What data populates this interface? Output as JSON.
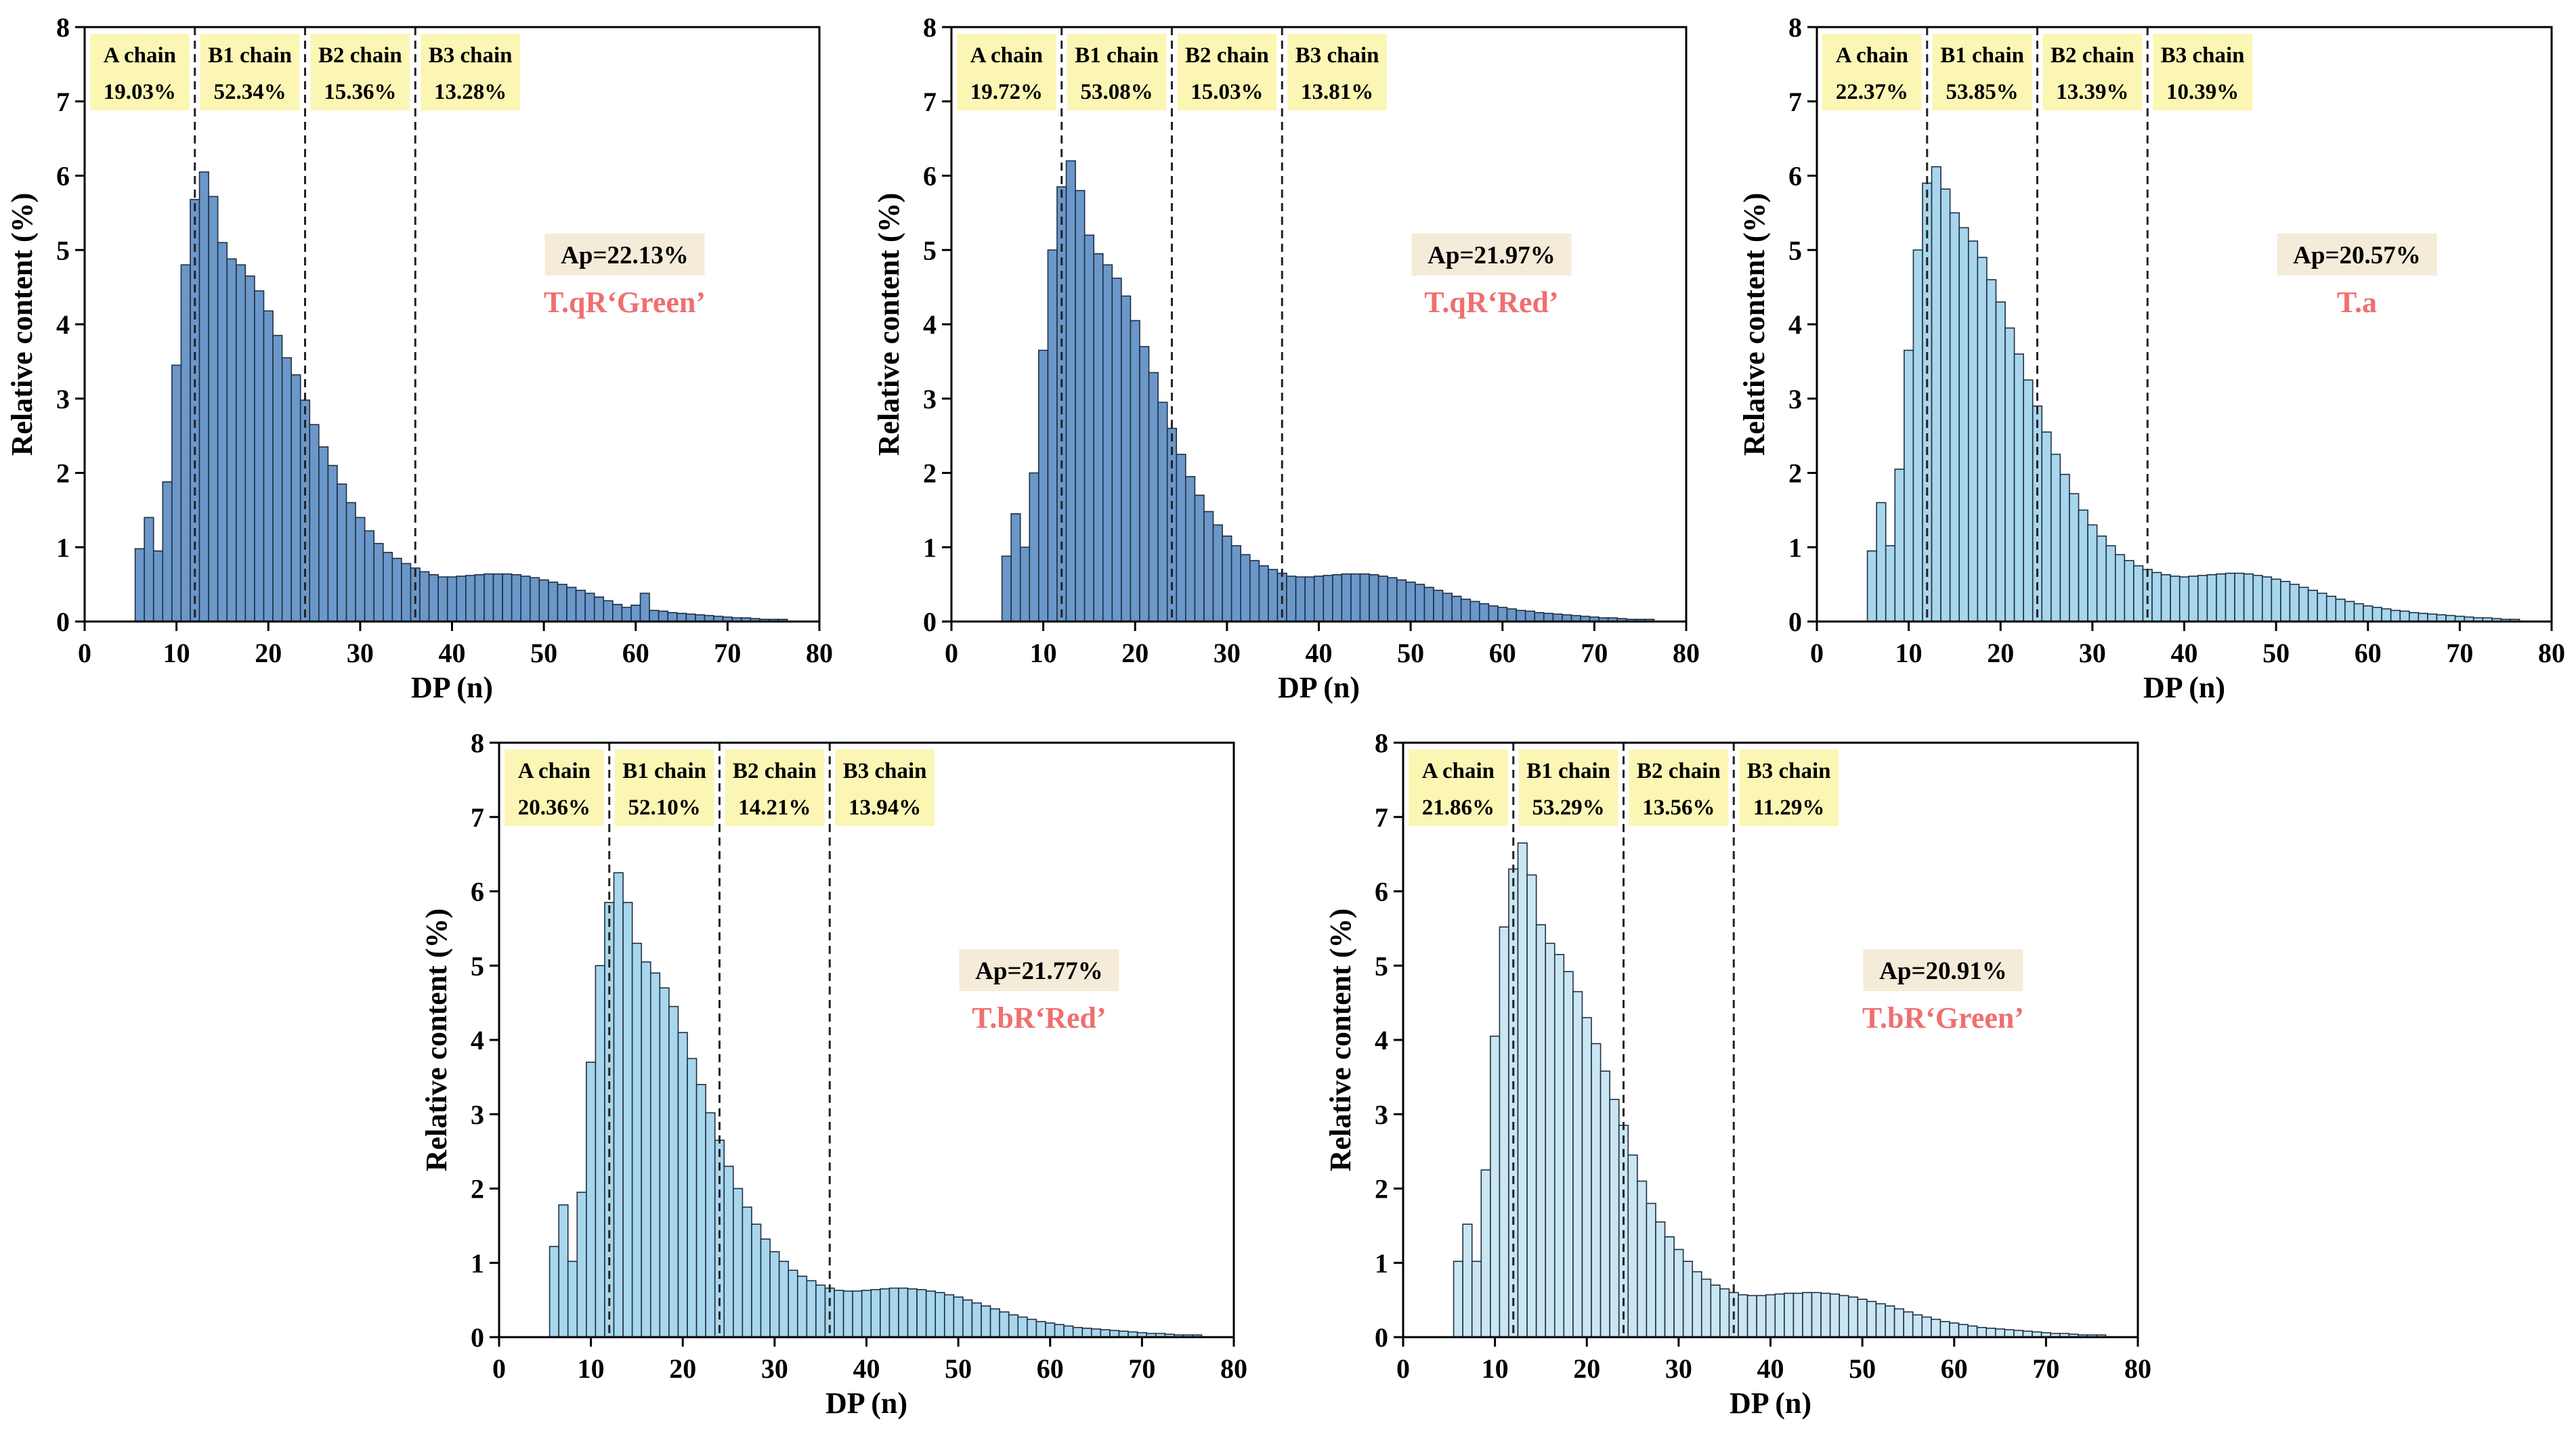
{
  "chart_data": [
    {
      "type": "bar",
      "title": "",
      "xlabel": "DP (n)",
      "ylabel": "Relative content (%)",
      "xlim": [
        0,
        80
      ],
      "ylim": [
        0,
        8
      ],
      "xticks": [
        0,
        10,
        20,
        30,
        40,
        50,
        60,
        70,
        80
      ],
      "yticks": [
        0,
        1,
        2,
        3,
        4,
        5,
        6,
        7,
        8
      ],
      "bar_color": "#6b97c9",
      "dp": [
        6,
        7,
        8,
        9,
        10,
        11,
        12,
        13,
        14,
        15,
        16,
        17,
        18,
        19,
        20,
        21,
        22,
        23,
        24,
        25,
        26,
        27,
        28,
        29,
        30,
        31,
        32,
        33,
        34,
        35,
        36,
        37,
        38,
        39,
        40,
        41,
        42,
        43,
        44,
        45,
        46,
        47,
        48,
        49,
        50,
        51,
        52,
        53,
        54,
        55,
        56,
        57,
        58,
        59,
        60,
        61,
        62,
        63,
        64,
        65,
        66,
        67,
        68,
        69,
        70,
        71,
        72,
        73,
        74,
        75,
        76
      ],
      "values": [
        0.98,
        1.4,
        0.95,
        1.88,
        3.45,
        4.8,
        5.68,
        6.05,
        5.72,
        5.1,
        4.88,
        4.8,
        4.65,
        4.45,
        4.18,
        3.85,
        3.55,
        3.32,
        2.98,
        2.65,
        2.35,
        2.1,
        1.85,
        1.6,
        1.4,
        1.22,
        1.05,
        0.93,
        0.85,
        0.78,
        0.72,
        0.67,
        0.63,
        0.6,
        0.6,
        0.61,
        0.62,
        0.63,
        0.64,
        0.64,
        0.64,
        0.63,
        0.61,
        0.59,
        0.56,
        0.53,
        0.5,
        0.46,
        0.42,
        0.38,
        0.33,
        0.28,
        0.23,
        0.19,
        0.22,
        0.38,
        0.15,
        0.14,
        0.12,
        0.11,
        0.1,
        0.09,
        0.08,
        0.07,
        0.06,
        0.05,
        0.05,
        0.04,
        0.03,
        0.03,
        0.03
      ],
      "chain_boundaries": [
        12,
        24,
        36
      ],
      "chains": [
        {
          "name": "A chain",
          "pct": "19.03%"
        },
        {
          "name": "B1 chain",
          "pct": "52.34%"
        },
        {
          "name": "B2 chain",
          "pct": "15.36%"
        },
        {
          "name": "B3 chain",
          "pct": "13.28%"
        }
      ],
      "ap": "Ap=22.13%",
      "sample": "T.qR‘Green’"
    },
    {
      "type": "bar",
      "title": "",
      "xlabel": "DP (n)",
      "ylabel": "Relative content (%)",
      "xlim": [
        0,
        80
      ],
      "ylim": [
        0,
        8
      ],
      "xticks": [
        0,
        10,
        20,
        30,
        40,
        50,
        60,
        70,
        80
      ],
      "yticks": [
        0,
        1,
        2,
        3,
        4,
        5,
        6,
        7,
        8
      ],
      "bar_color": "#6b97c9",
      "dp": [
        6,
        7,
        8,
        9,
        10,
        11,
        12,
        13,
        14,
        15,
        16,
        17,
        18,
        19,
        20,
        21,
        22,
        23,
        24,
        25,
        26,
        27,
        28,
        29,
        30,
        31,
        32,
        33,
        34,
        35,
        36,
        37,
        38,
        39,
        40,
        41,
        42,
        43,
        44,
        45,
        46,
        47,
        48,
        49,
        50,
        51,
        52,
        53,
        54,
        55,
        56,
        57,
        58,
        59,
        60,
        61,
        62,
        63,
        64,
        65,
        66,
        67,
        68,
        69,
        70,
        71,
        72,
        73,
        74,
        75,
        76
      ],
      "values": [
        0.88,
        1.45,
        1.0,
        2.0,
        3.65,
        5.0,
        5.85,
        6.2,
        5.8,
        5.2,
        4.95,
        4.8,
        4.62,
        4.38,
        4.05,
        3.7,
        3.35,
        2.95,
        2.6,
        2.25,
        1.95,
        1.7,
        1.48,
        1.3,
        1.15,
        1.02,
        0.9,
        0.82,
        0.75,
        0.7,
        0.65,
        0.61,
        0.6,
        0.6,
        0.61,
        0.62,
        0.63,
        0.64,
        0.64,
        0.64,
        0.63,
        0.61,
        0.59,
        0.56,
        0.53,
        0.5,
        0.46,
        0.42,
        0.38,
        0.34,
        0.3,
        0.27,
        0.24,
        0.21,
        0.19,
        0.17,
        0.15,
        0.14,
        0.12,
        0.11,
        0.1,
        0.09,
        0.08,
        0.07,
        0.06,
        0.05,
        0.05,
        0.04,
        0.03,
        0.03,
        0.03
      ],
      "chain_boundaries": [
        12,
        24,
        36
      ],
      "chains": [
        {
          "name": "A chain",
          "pct": "19.72%"
        },
        {
          "name": "B1 chain",
          "pct": "53.08%"
        },
        {
          "name": "B2 chain",
          "pct": "15.03%"
        },
        {
          "name": "B3 chain",
          "pct": "13.81%"
        }
      ],
      "ap": "Ap=21.97%",
      "sample": "T.qR‘Red’"
    },
    {
      "type": "bar",
      "title": "",
      "xlabel": "DP (n)",
      "ylabel": "Relative content (%)",
      "xlim": [
        0,
        80
      ],
      "ylim": [
        0,
        8
      ],
      "xticks": [
        0,
        10,
        20,
        30,
        40,
        50,
        60,
        70,
        80
      ],
      "yticks": [
        0,
        1,
        2,
        3,
        4,
        5,
        6,
        7,
        8
      ],
      "bar_color": "#a8d6ec",
      "dp": [
        6,
        7,
        8,
        9,
        10,
        11,
        12,
        13,
        14,
        15,
        16,
        17,
        18,
        19,
        20,
        21,
        22,
        23,
        24,
        25,
        26,
        27,
        28,
        29,
        30,
        31,
        32,
        33,
        34,
        35,
        36,
        37,
        38,
        39,
        40,
        41,
        42,
        43,
        44,
        45,
        46,
        47,
        48,
        49,
        50,
        51,
        52,
        53,
        54,
        55,
        56,
        57,
        58,
        59,
        60,
        61,
        62,
        63,
        64,
        65,
        66,
        67,
        68,
        69,
        70,
        71,
        72,
        73,
        74,
        75,
        76
      ],
      "values": [
        0.95,
        1.6,
        1.02,
        2.05,
        3.65,
        5.0,
        5.9,
        6.12,
        5.82,
        5.5,
        5.3,
        5.12,
        4.9,
        4.6,
        4.3,
        3.95,
        3.6,
        3.25,
        2.9,
        2.55,
        2.25,
        1.98,
        1.72,
        1.5,
        1.3,
        1.15,
        1.02,
        0.9,
        0.82,
        0.75,
        0.7,
        0.66,
        0.63,
        0.61,
        0.6,
        0.61,
        0.62,
        0.63,
        0.64,
        0.65,
        0.65,
        0.64,
        0.62,
        0.6,
        0.57,
        0.54,
        0.5,
        0.46,
        0.42,
        0.38,
        0.34,
        0.3,
        0.27,
        0.24,
        0.21,
        0.19,
        0.17,
        0.15,
        0.14,
        0.12,
        0.11,
        0.1,
        0.09,
        0.08,
        0.07,
        0.06,
        0.05,
        0.05,
        0.04,
        0.03,
        0.03
      ],
      "chain_boundaries": [
        12,
        24,
        36
      ],
      "chains": [
        {
          "name": "A chain",
          "pct": "22.37%"
        },
        {
          "name": "B1 chain",
          "pct": "53.85%"
        },
        {
          "name": "B2 chain",
          "pct": "13.39%"
        },
        {
          "name": "B3 chain",
          "pct": "10.39%"
        }
      ],
      "ap": "Ap=20.57%",
      "sample": "T.a"
    },
    {
      "type": "bar",
      "title": "",
      "xlabel": "DP (n)",
      "ylabel": "Relative content (%)",
      "xlim": [
        0,
        80
      ],
      "ylim": [
        0,
        8
      ],
      "xticks": [
        0,
        10,
        20,
        30,
        40,
        50,
        60,
        70,
        80
      ],
      "yticks": [
        0,
        1,
        2,
        3,
        4,
        5,
        6,
        7,
        8
      ],
      "bar_color": "#a8d6ec",
      "dp": [
        6,
        7,
        8,
        9,
        10,
        11,
        12,
        13,
        14,
        15,
        16,
        17,
        18,
        19,
        20,
        21,
        22,
        23,
        24,
        25,
        26,
        27,
        28,
        29,
        30,
        31,
        32,
        33,
        34,
        35,
        36,
        37,
        38,
        39,
        40,
        41,
        42,
        43,
        44,
        45,
        46,
        47,
        48,
        49,
        50,
        51,
        52,
        53,
        54,
        55,
        56,
        57,
        58,
        59,
        60,
        61,
        62,
        63,
        64,
        65,
        66,
        67,
        68,
        69,
        70,
        71,
        72,
        73,
        74,
        75,
        76
      ],
      "values": [
        1.22,
        1.78,
        1.02,
        1.95,
        3.7,
        5.0,
        5.85,
        6.25,
        5.85,
        5.3,
        5.05,
        4.9,
        4.7,
        4.45,
        4.1,
        3.75,
        3.4,
        3.02,
        2.65,
        2.3,
        2.0,
        1.75,
        1.52,
        1.32,
        1.15,
        1.02,
        0.9,
        0.82,
        0.76,
        0.7,
        0.66,
        0.63,
        0.62,
        0.62,
        0.63,
        0.64,
        0.65,
        0.66,
        0.66,
        0.65,
        0.64,
        0.62,
        0.6,
        0.57,
        0.54,
        0.5,
        0.46,
        0.42,
        0.38,
        0.34,
        0.3,
        0.27,
        0.24,
        0.21,
        0.19,
        0.17,
        0.15,
        0.13,
        0.12,
        0.11,
        0.1,
        0.09,
        0.08,
        0.07,
        0.06,
        0.05,
        0.05,
        0.04,
        0.03,
        0.03,
        0.03
      ],
      "chain_boundaries": [
        12,
        24,
        36
      ],
      "chains": [
        {
          "name": "A chain",
          "pct": "20.36%"
        },
        {
          "name": "B1 chain",
          "pct": "52.10%"
        },
        {
          "name": "B2 chain",
          "pct": "14.21%"
        },
        {
          "name": "B3 chain",
          "pct": "13.94%"
        }
      ],
      "ap": "Ap=21.77%",
      "sample": "T.bR‘Red’"
    },
    {
      "type": "bar",
      "title": "",
      "xlabel": "DP (n)",
      "ylabel": "Relative content (%)",
      "xlim": [
        0,
        80
      ],
      "ylim": [
        0,
        8
      ],
      "xticks": [
        0,
        10,
        20,
        30,
        40,
        50,
        60,
        70,
        80
      ],
      "yticks": [
        0,
        1,
        2,
        3,
        4,
        5,
        6,
        7,
        8
      ],
      "bar_color": "#c9e6f2",
      "dp": [
        6,
        7,
        8,
        9,
        10,
        11,
        12,
        13,
        14,
        15,
        16,
        17,
        18,
        19,
        20,
        21,
        22,
        23,
        24,
        25,
        26,
        27,
        28,
        29,
        30,
        31,
        32,
        33,
        34,
        35,
        36,
        37,
        38,
        39,
        40,
        41,
        42,
        43,
        44,
        45,
        46,
        47,
        48,
        49,
        50,
        51,
        52,
        53,
        54,
        55,
        56,
        57,
        58,
        59,
        60,
        61,
        62,
        63,
        64,
        65,
        66,
        67,
        68,
        69,
        70,
        71,
        72,
        73,
        74,
        75,
        76
      ],
      "values": [
        1.02,
        1.52,
        1.02,
        2.25,
        4.05,
        5.52,
        6.3,
        6.65,
        6.22,
        5.55,
        5.3,
        5.15,
        4.92,
        4.65,
        4.3,
        3.95,
        3.58,
        3.2,
        2.85,
        2.45,
        2.1,
        1.8,
        1.55,
        1.35,
        1.18,
        1.02,
        0.88,
        0.78,
        0.7,
        0.65,
        0.6,
        0.57,
        0.56,
        0.56,
        0.57,
        0.58,
        0.59,
        0.59,
        0.6,
        0.6,
        0.59,
        0.58,
        0.56,
        0.54,
        0.51,
        0.48,
        0.45,
        0.42,
        0.38,
        0.34,
        0.3,
        0.27,
        0.24,
        0.21,
        0.19,
        0.17,
        0.15,
        0.13,
        0.12,
        0.11,
        0.1,
        0.09,
        0.08,
        0.07,
        0.06,
        0.05,
        0.05,
        0.04,
        0.03,
        0.03,
        0.03
      ],
      "chain_boundaries": [
        12,
        24,
        36
      ],
      "chains": [
        {
          "name": "A chain",
          "pct": "21.86%"
        },
        {
          "name": "B1 chain",
          "pct": "53.29%"
        },
        {
          "name": "B2 chain",
          "pct": "13.56%"
        },
        {
          "name": "B3 chain",
          "pct": "11.29%"
        }
      ],
      "ap": "Ap=20.91%",
      "sample": "T.bR‘Green’"
    }
  ],
  "colors": {
    "label_box": "#fcf6b4",
    "ap_box": "#f4ecd8",
    "sample_text": "#ef6f6f",
    "bar_edge": "#1f2f44"
  }
}
